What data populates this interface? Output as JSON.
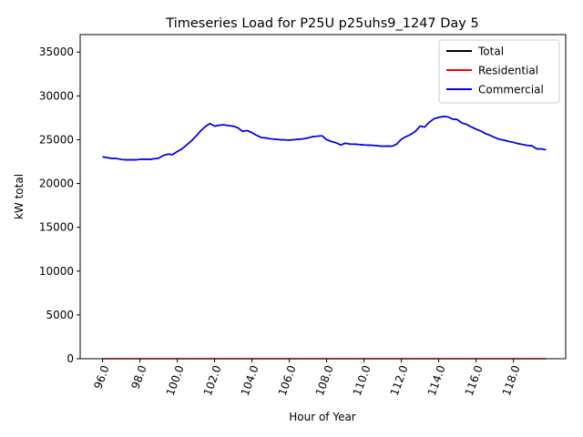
{
  "chart_data": {
    "type": "line",
    "title": "Timeseries Load for P25U p25uhs9_1247  Day 5",
    "xlabel": "Hour of Year",
    "ylabel": "kW total",
    "xlim": [
      94.8,
      120.8
    ],
    "ylim": [
      0,
      37000
    ],
    "x_ticks": [
      96,
      98,
      100,
      102,
      104,
      106,
      108,
      110,
      112,
      114,
      116,
      118
    ],
    "x_tick_labels": [
      "96.0",
      "98.0",
      "100.0",
      "102.0",
      "104.0",
      "106.0",
      "108.0",
      "110.0",
      "112.0",
      "114.0",
      "116.0",
      "118.0"
    ],
    "y_ticks": [
      0,
      5000,
      10000,
      15000,
      20000,
      25000,
      30000,
      35000
    ],
    "y_tick_labels": [
      "0",
      "5000",
      "10000",
      "15000",
      "20000",
      "25000",
      "30000",
      "35000"
    ],
    "grid": false,
    "legend_position": "top-right",
    "x": [
      96.0,
      96.25,
      96.5,
      96.75,
      97.0,
      97.25,
      97.5,
      97.75,
      98.0,
      98.25,
      98.5,
      98.75,
      99.0,
      99.25,
      99.5,
      99.75,
      100.0,
      100.25,
      100.5,
      100.75,
      101.0,
      101.25,
      101.5,
      101.75,
      102.0,
      102.25,
      102.5,
      102.75,
      103.0,
      103.25,
      103.5,
      103.75,
      104.0,
      104.25,
      104.5,
      104.75,
      105.0,
      105.25,
      105.5,
      105.75,
      106.0,
      106.25,
      106.5,
      106.75,
      107.0,
      107.25,
      107.5,
      107.75,
      108.0,
      108.25,
      108.5,
      108.75,
      109.0,
      109.25,
      109.5,
      109.75,
      110.0,
      110.25,
      110.5,
      110.75,
      111.0,
      111.25,
      111.5,
      111.75,
      112.0,
      112.25,
      112.5,
      112.75,
      113.0,
      113.25,
      113.5,
      113.75,
      114.0,
      114.25,
      114.5,
      114.75,
      115.0,
      115.25,
      115.5,
      115.75,
      116.0,
      116.25,
      116.5,
      116.75,
      117.0,
      117.25,
      117.5,
      117.75,
      118.0,
      118.25,
      118.5,
      118.75,
      119.0,
      119.25,
      119.5,
      119.75
    ],
    "series": [
      {
        "name": "Total",
        "color": "#000000",
        "values": [
          23050,
          22950,
          22870,
          22850,
          22750,
          22700,
          22720,
          22700,
          22750,
          22780,
          22740,
          22820,
          22900,
          23200,
          23350,
          23300,
          23650,
          23950,
          24400,
          24850,
          25400,
          26000,
          26500,
          26850,
          26550,
          26650,
          26700,
          26600,
          26550,
          26350,
          25950,
          26050,
          25800,
          25500,
          25250,
          25200,
          25100,
          25050,
          25000,
          24980,
          24950,
          25000,
          25050,
          25100,
          25200,
          25350,
          25400,
          25450,
          25000,
          24800,
          24650,
          24400,
          24600,
          24500,
          24500,
          24450,
          24400,
          24380,
          24350,
          24300,
          24250,
          24270,
          24250,
          24500,
          25050,
          25350,
          25600,
          25950,
          26550,
          26450,
          27000,
          27400,
          27550,
          27650,
          27600,
          27350,
          27300,
          26900,
          26750,
          26450,
          26200,
          26000,
          25700,
          25500,
          25250,
          25050,
          24950,
          24800,
          24700,
          24550,
          24450,
          24350,
          24300,
          23950,
          23950,
          23850
        ]
      },
      {
        "name": "Residential",
        "color": "#ff0000",
        "values": [
          0,
          0,
          0,
          0,
          0,
          0,
          0,
          0,
          0,
          0,
          0,
          0,
          0,
          0,
          0,
          0,
          0,
          0,
          0,
          0,
          0,
          0,
          0,
          0,
          0,
          0,
          0,
          0,
          0,
          0,
          0,
          0,
          0,
          0,
          0,
          0,
          0,
          0,
          0,
          0,
          0,
          0,
          0,
          0,
          0,
          0,
          0,
          0,
          0,
          0,
          0,
          0,
          0,
          0,
          0,
          0,
          0,
          0,
          0,
          0,
          0,
          0,
          0,
          0,
          0,
          0,
          0,
          0,
          0,
          0,
          0,
          0,
          0,
          0,
          0,
          0,
          0,
          0,
          0,
          0,
          0,
          0,
          0,
          0,
          0,
          0,
          0,
          0,
          0,
          0,
          0,
          0,
          0,
          0,
          0,
          0
        ]
      },
      {
        "name": "Commercial",
        "color": "#0000ff",
        "values": [
          23050,
          22950,
          22870,
          22850,
          22750,
          22700,
          22720,
          22700,
          22750,
          22780,
          22740,
          22820,
          22900,
          23200,
          23350,
          23300,
          23650,
          23950,
          24400,
          24850,
          25400,
          26000,
          26500,
          26850,
          26550,
          26650,
          26700,
          26600,
          26550,
          26350,
          25950,
          26050,
          25800,
          25500,
          25250,
          25200,
          25100,
          25050,
          25000,
          24980,
          24950,
          25000,
          25050,
          25100,
          25200,
          25350,
          25400,
          25450,
          25000,
          24800,
          24650,
          24400,
          24600,
          24500,
          24500,
          24450,
          24400,
          24380,
          24350,
          24300,
          24250,
          24270,
          24250,
          24500,
          25050,
          25350,
          25600,
          25950,
          26550,
          26450,
          27000,
          27400,
          27550,
          27650,
          27600,
          27350,
          27300,
          26900,
          26750,
          26450,
          26200,
          26000,
          25700,
          25500,
          25250,
          25050,
          24950,
          24800,
          24700,
          24550,
          24450,
          24350,
          24300,
          23950,
          23950,
          23850
        ]
      }
    ]
  }
}
